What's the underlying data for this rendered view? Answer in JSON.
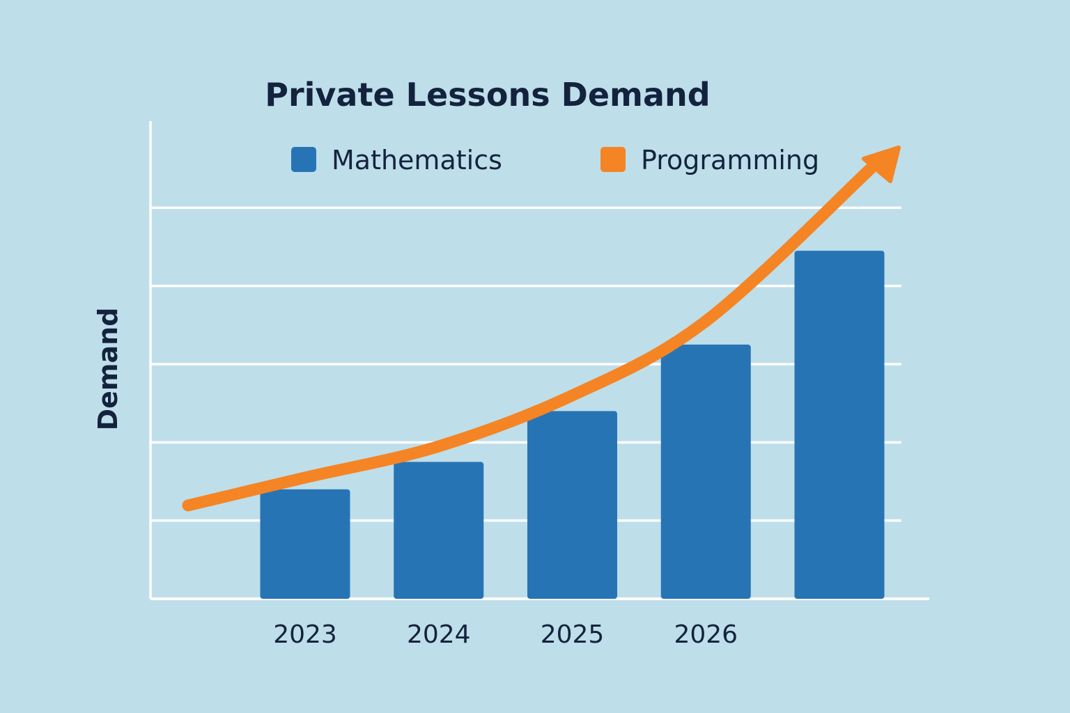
{
  "chart_data": {
    "type": "bar",
    "title": "Private Lessons Demand",
    "xlabel": "",
    "ylabel": "Demand",
    "categories": [
      "2023",
      "2024",
      "2025",
      "2026",
      ""
    ],
    "series": [
      {
        "name": "Mathematics",
        "type": "bar",
        "values": [
          1.4,
          1.75,
          2.4,
          3.25,
          4.45
        ]
      },
      {
        "name": "Programming",
        "type": "line",
        "values": [
          1.55,
          1.95,
          2.6,
          3.55,
          5.6
        ]
      }
    ],
    "ylim": [
      0,
      6
    ],
    "grid": true,
    "legend": "top",
    "colors": {
      "Mathematics": "#2774b5",
      "Programming": "#f58424",
      "grid": "#ffffff",
      "text": "#14233d"
    }
  }
}
